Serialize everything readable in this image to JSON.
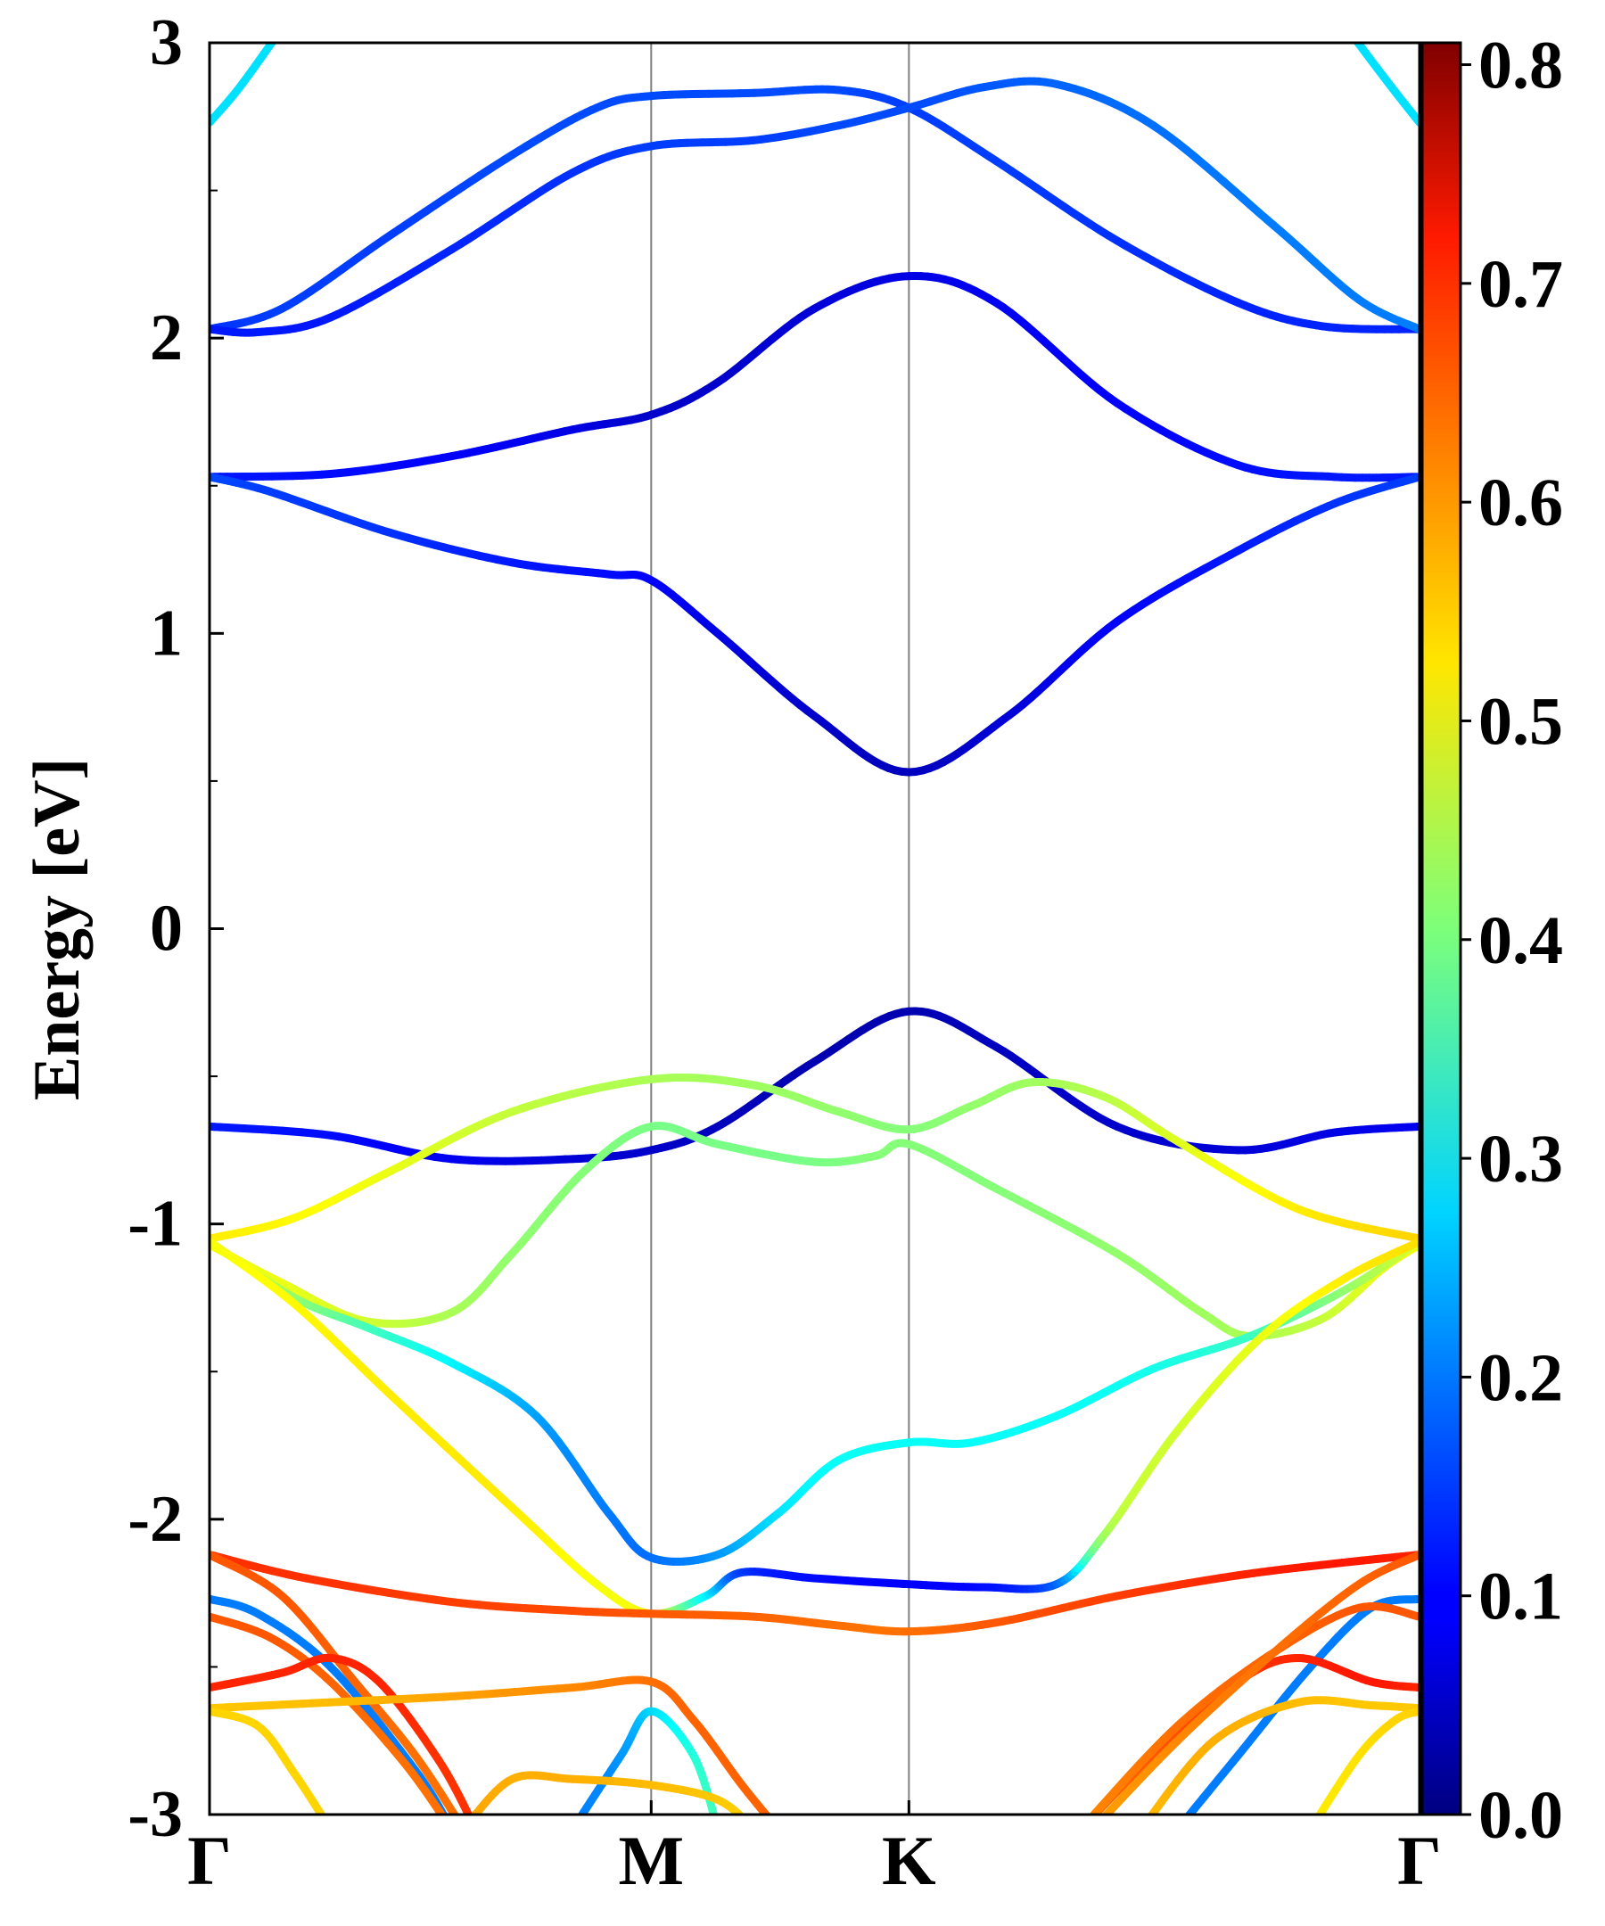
{
  "chart_data": {
    "type": "line",
    "subtype": "electronic-band-structure",
    "ylabel": "Energy [eV]",
    "xlabel": "",
    "ylim": [
      -3,
      3
    ],
    "yticks": [
      "-3",
      "-2",
      "-1",
      "0",
      "1",
      "2",
      "3"
    ],
    "kpoints": [
      {
        "label": "Γ",
        "x": 0
      },
      {
        "label": "M",
        "x": 0.365
      },
      {
        "label": "K",
        "x": 0.578
      },
      {
        "label": "Γ",
        "x": 1.0
      }
    ],
    "grid": false,
    "vertical_lines_at_kpoints": true,
    "colormap": "jet",
    "colorbar": {
      "range": [
        0.0,
        0.81
      ],
      "ticks": [
        "0.0",
        "0.1",
        "0.2",
        "0.3",
        "0.4",
        "0.5",
        "0.6",
        "0.7",
        "0.8"
      ]
    },
    "series": [
      {
        "points": [
          [
            0.0,
            2.73,
            0.28
          ],
          [
            0.025,
            2.85,
            0.28
          ],
          [
            0.06,
            3.05,
            0.28
          ]
        ]
      },
      {
        "points": [
          [
            0.94,
            3.05,
            0.28
          ],
          [
            0.975,
            2.86,
            0.28
          ],
          [
            1.0,
            2.73,
            0.28
          ]
        ]
      },
      {
        "points": [
          [
            0.0,
            2.03,
            0.14
          ],
          [
            0.06,
            2.1,
            0.15
          ],
          [
            0.15,
            2.35,
            0.15
          ],
          [
            0.25,
            2.62,
            0.16
          ],
          [
            0.32,
            2.78,
            0.16
          ],
          [
            0.365,
            2.82,
            0.16
          ],
          [
            0.45,
            2.83,
            0.16
          ],
          [
            0.52,
            2.84,
            0.16
          ],
          [
            0.578,
            2.78,
            0.15
          ],
          [
            0.65,
            2.6,
            0.15
          ],
          [
            0.75,
            2.33,
            0.14
          ],
          [
            0.85,
            2.12,
            0.13
          ],
          [
            0.92,
            2.04,
            0.13
          ],
          [
            1.0,
            2.03,
            0.13
          ]
        ]
      },
      {
        "points": [
          [
            0.0,
            2.03,
            0.12
          ],
          [
            0.04,
            2.02,
            0.12
          ],
          [
            0.1,
            2.07,
            0.12
          ],
          [
            0.2,
            2.3,
            0.13
          ],
          [
            0.3,
            2.56,
            0.14
          ],
          [
            0.365,
            2.65,
            0.15
          ],
          [
            0.45,
            2.67,
            0.15
          ],
          [
            0.52,
            2.72,
            0.16
          ],
          [
            0.578,
            2.78,
            0.16
          ],
          [
            0.64,
            2.85,
            0.17
          ],
          [
            0.7,
            2.86,
            0.18
          ],
          [
            0.78,
            2.72,
            0.19
          ],
          [
            0.88,
            2.38,
            0.2
          ],
          [
            0.95,
            2.13,
            0.2
          ],
          [
            1.0,
            2.03,
            0.2
          ]
        ]
      },
      {
        "points": [
          [
            0.0,
            1.53,
            0.12
          ],
          [
            0.1,
            1.54,
            0.11
          ],
          [
            0.2,
            1.6,
            0.1
          ],
          [
            0.3,
            1.69,
            0.08
          ],
          [
            0.365,
            1.74,
            0.06
          ],
          [
            0.42,
            1.85,
            0.06
          ],
          [
            0.5,
            2.1,
            0.07
          ],
          [
            0.578,
            2.21,
            0.08
          ],
          [
            0.65,
            2.12,
            0.09
          ],
          [
            0.75,
            1.78,
            0.1
          ],
          [
            0.85,
            1.57,
            0.11
          ],
          [
            0.93,
            1.53,
            0.12
          ],
          [
            1.0,
            1.53,
            0.12
          ]
        ]
      },
      {
        "points": [
          [
            0.0,
            1.53,
            0.16
          ],
          [
            0.05,
            1.48,
            0.15
          ],
          [
            0.15,
            1.34,
            0.14
          ],
          [
            0.25,
            1.24,
            0.12
          ],
          [
            0.33,
            1.2,
            0.11
          ],
          [
            0.365,
            1.18,
            0.1
          ],
          [
            0.42,
            1.0,
            0.08
          ],
          [
            0.5,
            0.72,
            0.06
          ],
          [
            0.578,
            0.53,
            0.05
          ],
          [
            0.66,
            0.72,
            0.07
          ],
          [
            0.75,
            1.04,
            0.1
          ],
          [
            0.85,
            1.28,
            0.12
          ],
          [
            0.93,
            1.44,
            0.14
          ],
          [
            1.0,
            1.53,
            0.15
          ]
        ]
      },
      {
        "points": [
          [
            0.0,
            -0.67,
            0.12
          ],
          [
            0.1,
            -0.7,
            0.11
          ],
          [
            0.2,
            -0.78,
            0.09
          ],
          [
            0.3,
            -0.78,
            0.07
          ],
          [
            0.365,
            -0.75,
            0.06
          ],
          [
            0.42,
            -0.67,
            0.05
          ],
          [
            0.5,
            -0.45,
            0.04
          ],
          [
            0.578,
            -0.28,
            0.04
          ],
          [
            0.65,
            -0.4,
            0.05
          ],
          [
            0.75,
            -0.67,
            0.06
          ],
          [
            0.85,
            -0.75,
            0.07
          ],
          [
            0.93,
            -0.69,
            0.08
          ],
          [
            1.0,
            -0.67,
            0.09
          ]
        ]
      },
      {
        "points": [
          [
            0.0,
            -1.05,
            0.52
          ],
          [
            0.07,
            -0.98,
            0.51
          ],
          [
            0.15,
            -0.82,
            0.49
          ],
          [
            0.25,
            -0.62,
            0.46
          ],
          [
            0.365,
            -0.51,
            0.44
          ],
          [
            0.45,
            -0.53,
            0.43
          ],
          [
            0.52,
            -0.62,
            0.42
          ],
          [
            0.578,
            -0.68,
            0.41
          ],
          [
            0.63,
            -0.6,
            0.42
          ],
          [
            0.68,
            -0.52,
            0.43
          ],
          [
            0.74,
            -0.57,
            0.45
          ],
          [
            0.8,
            -0.72,
            0.48
          ],
          [
            0.9,
            -0.95,
            0.52
          ],
          [
            1.0,
            -1.05,
            0.54
          ]
        ]
      },
      {
        "points": [
          [
            0.0,
            -1.07,
            0.5
          ],
          [
            0.06,
            -1.2,
            0.49
          ],
          [
            0.13,
            -1.33,
            0.47
          ],
          [
            0.2,
            -1.3,
            0.44
          ],
          [
            0.25,
            -1.1,
            0.42
          ],
          [
            0.31,
            -0.82,
            0.41
          ],
          [
            0.365,
            -0.67,
            0.4
          ],
          [
            0.42,
            -0.73,
            0.4
          ],
          [
            0.5,
            -0.79,
            0.4
          ],
          [
            0.55,
            -0.77,
            0.41
          ],
          [
            0.578,
            -0.73,
            0.41
          ],
          [
            0.65,
            -0.88,
            0.41
          ],
          [
            0.75,
            -1.1,
            0.42
          ],
          [
            0.82,
            -1.3,
            0.43
          ],
          [
            0.86,
            -1.38,
            0.44
          ],
          [
            0.92,
            -1.32,
            0.46
          ],
          [
            0.97,
            -1.15,
            0.49
          ],
          [
            1.0,
            -1.07,
            0.5
          ]
        ]
      },
      {
        "points": [
          [
            0.0,
            -1.06,
            0.48
          ],
          [
            0.07,
            -1.25,
            0.42
          ],
          [
            0.13,
            -1.35,
            0.36
          ],
          [
            0.2,
            -1.47,
            0.3
          ],
          [
            0.27,
            -1.65,
            0.23
          ],
          [
            0.33,
            -1.98,
            0.2
          ],
          [
            0.365,
            -2.13,
            0.19
          ],
          [
            0.42,
            -2.12,
            0.22
          ],
          [
            0.47,
            -1.98,
            0.28
          ],
          [
            0.52,
            -1.8,
            0.31
          ],
          [
            0.578,
            -1.74,
            0.31
          ],
          [
            0.63,
            -1.74,
            0.31
          ],
          [
            0.7,
            -1.65,
            0.31
          ],
          [
            0.78,
            -1.49,
            0.32
          ],
          [
            0.86,
            -1.38,
            0.35
          ],
          [
            0.94,
            -1.22,
            0.42
          ],
          [
            1.0,
            -1.06,
            0.48
          ]
        ]
      },
      {
        "points": [
          [
            0.0,
            -1.06,
            0.5
          ],
          [
            0.07,
            -1.27,
            0.51
          ],
          [
            0.15,
            -1.58,
            0.52
          ],
          [
            0.25,
            -1.96,
            0.52
          ],
          [
            0.32,
            -2.22,
            0.5
          ],
          [
            0.365,
            -2.32,
            0.48
          ],
          [
            0.41,
            -2.26,
            0.3
          ],
          [
            0.44,
            -2.18,
            0.15
          ],
          [
            0.5,
            -2.2,
            0.11
          ],
          [
            0.578,
            -2.22,
            0.1
          ],
          [
            0.64,
            -2.23,
            0.11
          ],
          [
            0.7,
            -2.22,
            0.18
          ],
          [
            0.74,
            -2.05,
            0.43
          ],
          [
            0.8,
            -1.7,
            0.47
          ],
          [
            0.87,
            -1.38,
            0.49
          ],
          [
            0.94,
            -1.18,
            0.52
          ],
          [
            1.0,
            -1.06,
            0.53
          ]
        ]
      },
      {
        "points": [
          [
            0.0,
            -2.12,
            0.67
          ],
          [
            0.08,
            -2.2,
            0.67
          ],
          [
            0.2,
            -2.28,
            0.66
          ],
          [
            0.3,
            -2.31,
            0.65
          ],
          [
            0.365,
            -2.32,
            0.64
          ],
          [
            0.45,
            -2.33,
            0.63
          ],
          [
            0.52,
            -2.36,
            0.62
          ],
          [
            0.578,
            -2.38,
            0.62
          ],
          [
            0.65,
            -2.35,
            0.64
          ],
          [
            0.75,
            -2.26,
            0.66
          ],
          [
            0.85,
            -2.19,
            0.68
          ],
          [
            0.93,
            -2.15,
            0.69
          ],
          [
            1.0,
            -2.12,
            0.68
          ]
        ]
      },
      {
        "points": [
          [
            0.0,
            -2.27,
            0.2
          ],
          [
            0.04,
            -2.32,
            0.2
          ],
          [
            0.1,
            -2.5,
            0.2
          ],
          [
            0.17,
            -2.85,
            0.2
          ],
          [
            0.2,
            -3.05,
            0.2
          ]
        ]
      },
      {
        "points": [
          [
            0.8,
            -3.05,
            0.2
          ],
          [
            0.85,
            -2.8,
            0.2
          ],
          [
            0.91,
            -2.5,
            0.2
          ],
          [
            0.96,
            -2.3,
            0.2
          ],
          [
            1.0,
            -2.27,
            0.2
          ]
        ]
      },
      {
        "points": [
          [
            0.0,
            -2.33,
            0.64
          ],
          [
            0.05,
            -2.4,
            0.64
          ],
          [
            0.1,
            -2.55,
            0.63
          ],
          [
            0.16,
            -2.82,
            0.62
          ],
          [
            0.2,
            -3.05,
            0.62
          ]
        ]
      },
      {
        "points": [
          [
            0.0,
            -2.12,
            0.64
          ],
          [
            0.06,
            -2.26,
            0.64
          ],
          [
            0.12,
            -2.55,
            0.63
          ],
          [
            0.17,
            -2.8,
            0.62
          ],
          [
            0.21,
            -3.05,
            0.62
          ]
        ]
      },
      {
        "points": [
          [
            0.0,
            -2.57,
            0.68
          ],
          [
            0.06,
            -2.52,
            0.68
          ],
          [
            0.1,
            -2.47,
            0.68
          ],
          [
            0.14,
            -2.55,
            0.68
          ],
          [
            0.19,
            -2.82,
            0.67
          ],
          [
            0.22,
            -3.05,
            0.67
          ]
        ]
      },
      {
        "points": [
          [
            0.0,
            -2.64,
            0.55
          ],
          [
            0.1,
            -2.62,
            0.56
          ],
          [
            0.2,
            -2.6,
            0.58
          ],
          [
            0.3,
            -2.57,
            0.6
          ],
          [
            0.365,
            -2.55,
            0.62
          ],
          [
            0.4,
            -2.68,
            0.63
          ],
          [
            0.44,
            -2.9,
            0.63
          ],
          [
            0.47,
            -3.05,
            0.63
          ]
        ]
      },
      {
        "points": [
          [
            0.0,
            -2.65,
            0.54
          ],
          [
            0.04,
            -2.7,
            0.54
          ],
          [
            0.07,
            -2.86,
            0.54
          ],
          [
            0.1,
            -3.05,
            0.54
          ]
        ]
      },
      {
        "points": [
          [
            0.3,
            -3.05,
            0.2
          ],
          [
            0.34,
            -2.8,
            0.22
          ],
          [
            0.365,
            -2.65,
            0.27
          ],
          [
            0.4,
            -2.8,
            0.33
          ],
          [
            0.42,
            -3.05,
            0.36
          ]
        ]
      },
      {
        "points": [
          [
            0.21,
            -3.05,
            0.58
          ],
          [
            0.25,
            -2.88,
            0.57
          ],
          [
            0.3,
            -2.88,
            0.57
          ],
          [
            0.365,
            -2.9,
            0.56
          ],
          [
            0.42,
            -2.95,
            0.55
          ],
          [
            0.45,
            -3.05,
            0.54
          ]
        ]
      },
      {
        "points": [
          [
            0.72,
            -3.05,
            0.62
          ],
          [
            0.78,
            -2.8,
            0.64
          ],
          [
            0.85,
            -2.55,
            0.66
          ],
          [
            0.9,
            -2.47,
            0.68
          ],
          [
            0.96,
            -2.55,
            0.69
          ],
          [
            1.0,
            -2.57,
            0.68
          ]
        ]
      },
      {
        "points": [
          [
            0.72,
            -3.05,
            0.6
          ],
          [
            0.8,
            -2.7,
            0.62
          ],
          [
            0.88,
            -2.45,
            0.63
          ],
          [
            0.95,
            -2.3,
            0.64
          ],
          [
            1.0,
            -2.33,
            0.64
          ]
        ]
      },
      {
        "points": [
          [
            0.73,
            -3.05,
            0.58
          ],
          [
            0.8,
            -2.75,
            0.6
          ],
          [
            0.88,
            -2.45,
            0.62
          ],
          [
            0.95,
            -2.22,
            0.63
          ],
          [
            1.0,
            -2.12,
            0.64
          ]
        ]
      },
      {
        "points": [
          [
            0.77,
            -3.05,
            0.56
          ],
          [
            0.83,
            -2.75,
            0.57
          ],
          [
            0.9,
            -2.62,
            0.56
          ],
          [
            0.96,
            -2.63,
            0.55
          ],
          [
            1.0,
            -2.64,
            0.55
          ]
        ]
      },
      {
        "points": [
          [
            0.91,
            -3.05,
            0.52
          ],
          [
            0.95,
            -2.8,
            0.53
          ],
          [
            0.98,
            -2.68,
            0.54
          ],
          [
            1.0,
            -2.65,
            0.54
          ]
        ]
      }
    ]
  }
}
